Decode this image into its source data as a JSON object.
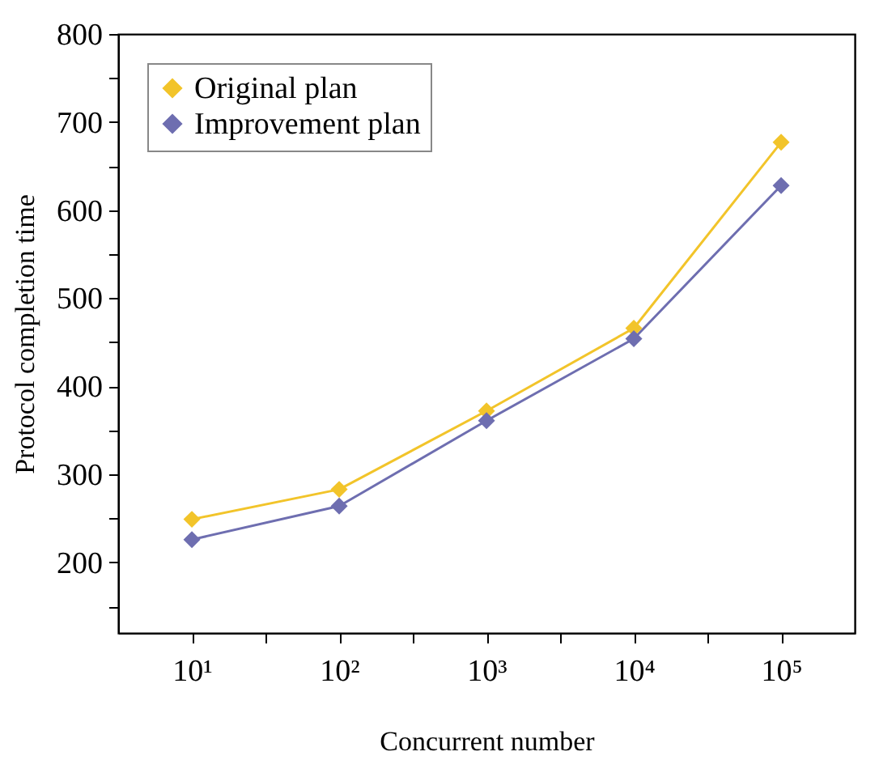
{
  "chart_data": {
    "type": "line",
    "xlabel": "Concurrent number",
    "ylabel": "Protocol completion time",
    "log": "x",
    "marker": "diamond",
    "line_style": "solid",
    "legend": "top left",
    "x": [
      10,
      100,
      1000,
      10000,
      100000
    ],
    "xlim": [
      3.16,
      316000
    ],
    "xticks": [
      {
        "value": 10,
        "label": "10¹"
      },
      {
        "value": 31.6,
        "label": null
      },
      {
        "value": 100,
        "label": "10²"
      },
      {
        "value": 316,
        "label": null
      },
      {
        "value": 1000,
        "label": "10³"
      },
      {
        "value": 3160,
        "label": null
      },
      {
        "value": 10000,
        "label": "10⁴"
      },
      {
        "value": 31600,
        "label": null
      },
      {
        "value": 100000,
        "label": "10⁵"
      }
    ],
    "ylim": [
      120,
      800
    ],
    "yticks": [
      {
        "value": 150,
        "label": null
      },
      200,
      {
        "value": 250,
        "label": null
      },
      300,
      {
        "value": 350,
        "label": null
      },
      400,
      {
        "value": 450,
        "label": null
      },
      500,
      {
        "value": 550,
        "label": null
      },
      600,
      {
        "value": 650,
        "label": null
      },
      700,
      {
        "value": 750,
        "label": null
      },
      800
    ],
    "series": [
      {
        "name": "Original plan",
        "color": "#f2c42a",
        "values": [
          249,
          283,
          372,
          466,
          677
        ]
      },
      {
        "name": "Improvement plan",
        "color": "#6e6eb0",
        "values": [
          226,
          264,
          361,
          454,
          628
        ]
      }
    ]
  }
}
